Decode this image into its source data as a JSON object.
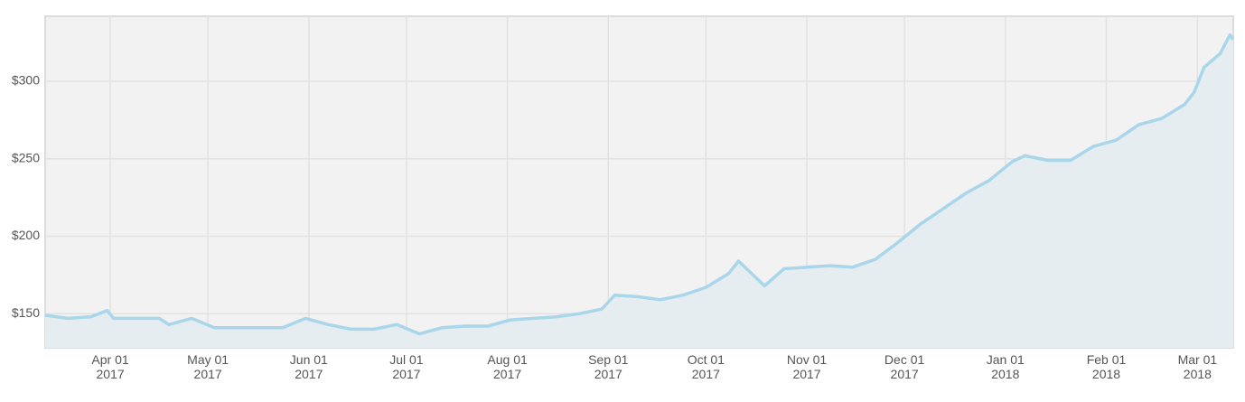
{
  "chart_data": {
    "type": "area",
    "x": [
      "2017-03-12",
      "2017-03-19",
      "2017-03-26",
      "2017-03-31",
      "2017-04-02",
      "2017-04-09",
      "2017-04-16",
      "2017-04-19",
      "2017-04-26",
      "2017-05-03",
      "2017-05-10",
      "2017-05-17",
      "2017-05-24",
      "2017-05-31",
      "2017-06-07",
      "2017-06-14",
      "2017-06-21",
      "2017-06-28",
      "2017-07-05",
      "2017-07-12",
      "2017-07-19",
      "2017-07-26",
      "2017-08-02",
      "2017-08-09",
      "2017-08-16",
      "2017-08-23",
      "2017-08-30",
      "2017-09-03",
      "2017-09-10",
      "2017-09-17",
      "2017-09-24",
      "2017-10-01",
      "2017-10-08",
      "2017-10-11",
      "2017-10-19",
      "2017-10-25",
      "2017-11-01",
      "2017-11-08",
      "2017-11-15",
      "2017-11-22",
      "2017-11-29",
      "2017-12-06",
      "2017-12-13",
      "2017-12-20",
      "2017-12-27",
      "2018-01-03",
      "2018-01-07",
      "2018-01-14",
      "2018-01-21",
      "2018-01-28",
      "2018-02-04",
      "2018-02-11",
      "2018-02-18",
      "2018-02-25",
      "2018-02-28",
      "2018-03-03",
      "2018-03-08",
      "2018-03-11",
      "2018-03-12"
    ],
    "series": [
      {
        "color": "#a9d6ea",
        "fill": "#e6edf1",
        "values": [
          149,
          147,
          148,
          152,
          147,
          147,
          147,
          143,
          147,
          141,
          141,
          141,
          141,
          147,
          143,
          140,
          140,
          143,
          137,
          141,
          142,
          142,
          146,
          147,
          148,
          150,
          153,
          162,
          161,
          159,
          162,
          167,
          176,
          184,
          168,
          179,
          180,
          181,
          180,
          185,
          196,
          208,
          218,
          228,
          236,
          248,
          252,
          249,
          249,
          258,
          262,
          272,
          276,
          285,
          293,
          309,
          318,
          330,
          327
        ]
      }
    ],
    "xlim": [
      "2017-03-12",
      "2018-03-12"
    ],
    "xticks": [
      {
        "value": "2017-04-01",
        "label": "Apr 01\n2017"
      },
      {
        "value": "2017-05-01",
        "label": "May 01\n2017"
      },
      {
        "value": "2017-06-01",
        "label": "Jun 01\n2017"
      },
      {
        "value": "2017-07-01",
        "label": "Jul 01\n2017"
      },
      {
        "value": "2017-08-01",
        "label": "Aug 01\n2017"
      },
      {
        "value": "2017-09-01",
        "label": "Sep 01\n2017"
      },
      {
        "value": "2017-10-01",
        "label": "Oct 01\n2017"
      },
      {
        "value": "2017-11-01",
        "label": "Nov 01\n2017"
      },
      {
        "value": "2017-12-01",
        "label": "Dec 01\n2017"
      },
      {
        "value": "2018-01-01",
        "label": "Jan 01\n2018"
      },
      {
        "value": "2018-02-01",
        "label": "Feb 01\n2018"
      },
      {
        "value": "2018-03-01",
        "label": "Mar 01\n2018"
      }
    ],
    "ylim": [
      128,
      342
    ],
    "yticks": [
      {
        "value": 150,
        "label": "$150"
      },
      {
        "value": 200,
        "label": "$200"
      },
      {
        "value": 250,
        "label": "$250"
      },
      {
        "value": 300,
        "label": "$300"
      }
    ],
    "grid": true
  }
}
